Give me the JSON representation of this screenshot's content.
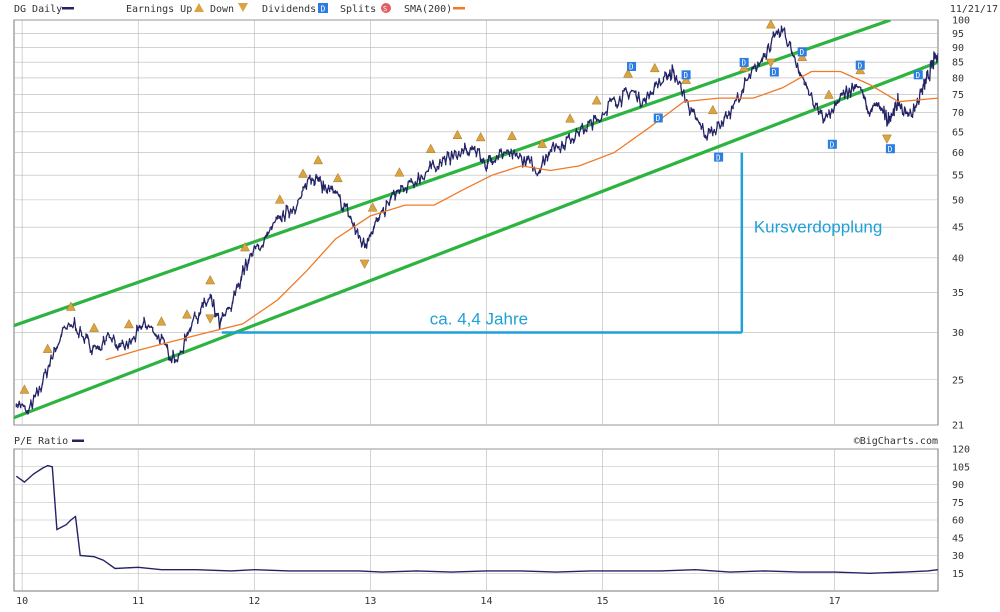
{
  "header": {
    "symbol_label": "DG Daily",
    "legend": [
      {
        "label": "Earnings Up",
        "icon": "earnings-up-icon",
        "color": "#d9a441"
      },
      {
        "label": "Down",
        "icon": "earnings-down-icon",
        "color": "#d9a441"
      },
      {
        "label": "Dividends",
        "icon": "dividend-icon",
        "glyph": "D",
        "color": "#2b7de0"
      },
      {
        "label": "Splits",
        "icon": "split-icon",
        "glyph": "S",
        "color": "#e06060"
      },
      {
        "label": "SMA(200)",
        "icon": "sma-line-icon",
        "color": "#f07a28"
      }
    ],
    "date": "11/21/17"
  },
  "footer": {
    "source": "©BigCharts.com"
  },
  "colors": {
    "price": "#232366",
    "sma": "#f07a28",
    "channel": "#2db33f",
    "annotation": "#1ea0d8",
    "grid": "#b8b8b8",
    "event_icon": "#d9a441",
    "dividend_icon": "#2b7de0"
  },
  "chart_data": [
    {
      "type": "line",
      "name": "price",
      "series_label": "DG Daily",
      "x_tick_labels": [
        "10",
        "11",
        "12",
        "13",
        "14",
        "15",
        "16",
        "17"
      ],
      "x_ticks": [
        2010,
        2011,
        2012,
        2013,
        2014,
        2015,
        2016,
        2017
      ],
      "xlim": [
        2009.93,
        2017.89
      ],
      "y_scale": "log",
      "y_ticks": [
        21,
        25,
        30,
        35,
        40,
        45,
        50,
        55,
        60,
        65,
        70,
        75,
        80,
        85,
        90,
        95,
        100
      ],
      "ylim": [
        21,
        100
      ],
      "grid": true,
      "series": [
        {
          "name": "DG Daily",
          "x": [
            2009.95,
            2010.05,
            2010.15,
            2010.25,
            2010.35,
            2010.45,
            2010.55,
            2010.65,
            2010.75,
            2010.85,
            2010.95,
            2011.05,
            2011.15,
            2011.25,
            2011.35,
            2011.45,
            2011.55,
            2011.62,
            2011.7,
            2011.8,
            2011.9,
            2012.0,
            2012.1,
            2012.2,
            2012.3,
            2012.4,
            2012.48,
            2012.55,
            2012.62,
            2012.7,
            2012.8,
            2012.88,
            2012.95,
            2013.02,
            2013.1,
            2013.2,
            2013.3,
            2013.4,
            2013.5,
            2013.6,
            2013.7,
            2013.8,
            2013.9,
            2014.0,
            2014.05,
            2014.15,
            2014.25,
            2014.35,
            2014.45,
            2014.55,
            2014.65,
            2014.75,
            2014.85,
            2014.95,
            2015.05,
            2015.15,
            2015.25,
            2015.35,
            2015.45,
            2015.55,
            2015.6,
            2015.7,
            2015.8,
            2015.9,
            2016.0,
            2016.1,
            2016.2,
            2016.3,
            2016.4,
            2016.48,
            2016.55,
            2016.62,
            2016.7,
            2016.8,
            2016.9,
            2017.0,
            2017.1,
            2017.2,
            2017.3,
            2017.38,
            2017.45,
            2017.5,
            2017.55,
            2017.62,
            2017.7,
            2017.75,
            2017.8,
            2017.85,
            2017.89
          ],
          "y": [
            23,
            22,
            24,
            27,
            30,
            31,
            29,
            28,
            30,
            28,
            29,
            31,
            30,
            28,
            27,
            31,
            33,
            34,
            31,
            33,
            38,
            41,
            43,
            46,
            48,
            50,
            55,
            54,
            52,
            51,
            48,
            44,
            42,
            45,
            47,
            51,
            52,
            54,
            56,
            58,
            59,
            60,
            61,
            57,
            59,
            60,
            59,
            58,
            56,
            61,
            62,
            64,
            66,
            68,
            72,
            74,
            76,
            73,
            77,
            80,
            82,
            75,
            68,
            64,
            67,
            70,
            76,
            82,
            88,
            93,
            96,
            90,
            82,
            74,
            68,
            71,
            76,
            78,
            70,
            72,
            68,
            70,
            73,
            69,
            72,
            76,
            80,
            85,
            88
          ]
        },
        {
          "name": "SMA(200)",
          "x": [
            2010.72,
            2011.0,
            2011.3,
            2011.6,
            2011.9,
            2012.2,
            2012.45,
            2012.7,
            2013.0,
            2013.3,
            2013.55,
            2013.8,
            2014.05,
            2014.3,
            2014.55,
            2014.8,
            2015.1,
            2015.4,
            2015.7,
            2016.0,
            2016.3,
            2016.55,
            2016.8,
            2017.05,
            2017.3,
            2017.55,
            2017.89
          ],
          "y": [
            27,
            28,
            29,
            30,
            31,
            34,
            38,
            43,
            47,
            49,
            49,
            52,
            55,
            57,
            56,
            57,
            60,
            66,
            73,
            74,
            74,
            77,
            82,
            82,
            78,
            73,
            74
          ]
        }
      ],
      "event_markers": {
        "earnings_up_x": [
          2010.02,
          2010.22,
          2010.42,
          2010.62,
          2010.92,
          2011.2,
          2011.42,
          2011.62,
          2011.92,
          2012.22,
          2012.42,
          2012.55,
          2012.72,
          2013.02,
          2013.25,
          2013.52,
          2013.75,
          2013.95,
          2014.22,
          2014.48,
          2014.72,
          2014.95,
          2015.22,
          2015.45,
          2015.72,
          2015.95,
          2016.22,
          2016.45,
          2016.72,
          2016.95,
          2017.22
        ],
        "earnings_down_x": [
          2011.62,
          2012.95,
          2016.45,
          2017.45
        ],
        "dividends_x": [
          2015.25,
          2015.48,
          2015.72,
          2016.0,
          2016.22,
          2016.48,
          2016.72,
          2016.98,
          2017.22,
          2017.48,
          2017.72
        ]
      },
      "annotations": {
        "upper_channel": [
          [
            2009.93,
            30.8
          ],
          [
            2017.48,
            100
          ]
        ],
        "lower_channel": [
          [
            2009.93,
            21.6
          ],
          [
            2017.89,
            85
          ]
        ],
        "horizontal_label": "ca. 4,4 Jahre",
        "vertical_label": "Kursverdopplung",
        "bracket": {
          "x_start": 2011.72,
          "x_end": 2016.2,
          "y_low": 30,
          "y_high": 60
        }
      }
    },
    {
      "type": "line",
      "name": "pe",
      "series_label": "P/E Ratio",
      "x_tick_labels": [
        "10",
        "11",
        "12",
        "13",
        "14",
        "15",
        "16",
        "17"
      ],
      "x_ticks": [
        2010,
        2011,
        2012,
        2013,
        2014,
        2015,
        2016,
        2017
      ],
      "xlim": [
        2009.93,
        2017.89
      ],
      "y_ticks": [
        15,
        30,
        45,
        60,
        75,
        90,
        105,
        120
      ],
      "ylim": [
        0,
        120
      ],
      "grid": true,
      "series": [
        {
          "name": "P/E Ratio",
          "x": [
            2009.95,
            2010.02,
            2010.1,
            2010.18,
            2010.22,
            2010.26,
            2010.3,
            2010.38,
            2010.42,
            2010.46,
            2010.5,
            2010.62,
            2010.7,
            2010.8,
            2011.0,
            2011.2,
            2011.5,
            2011.8,
            2012.0,
            2012.3,
            2012.6,
            2012.9,
            2013.1,
            2013.4,
            2013.7,
            2014.0,
            2014.3,
            2014.6,
            2014.9,
            2015.2,
            2015.5,
            2015.8,
            2016.1,
            2016.4,
            2016.7,
            2017.0,
            2017.3,
            2017.6,
            2017.8,
            2017.89
          ],
          "y": [
            97,
            92,
            99,
            104,
            106,
            105,
            52,
            56,
            60,
            63,
            30,
            29,
            26,
            19,
            20,
            18,
            18,
            17,
            18,
            17,
            17,
            17,
            16,
            17,
            16,
            17,
            17,
            16,
            17,
            17,
            17,
            18,
            16,
            17,
            16,
            16,
            15,
            16,
            17,
            18
          ]
        }
      ]
    }
  ]
}
